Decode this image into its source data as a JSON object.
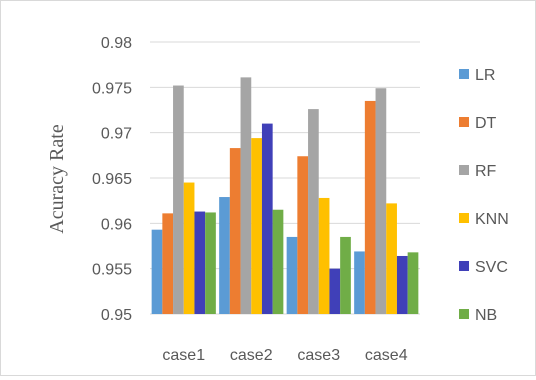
{
  "chart_data": {
    "type": "bar",
    "title": "",
    "xlabel": "",
    "ylabel": "Acuracy Rate",
    "ylim": [
      0.95,
      0.98
    ],
    "yticks": [
      "0.95",
      "0.955",
      "0.96",
      "0.965",
      "0.97",
      "0.975",
      "0.98"
    ],
    "grid": true,
    "legend_position": "right",
    "categories": [
      "case1",
      "case2",
      "case3",
      "case4"
    ],
    "series": [
      {
        "name": "LR",
        "color": "#5b9bd5",
        "values": [
          0.9593,
          0.9629,
          0.9585,
          0.9569
        ]
      },
      {
        "name": "DT",
        "color": "#ed7d31",
        "values": [
          0.9611,
          0.9683,
          0.9674,
          0.9735
        ]
      },
      {
        "name": "RF",
        "color": "#a5a5a5",
        "values": [
          0.9752,
          0.9761,
          0.9726,
          0.9749
        ]
      },
      {
        "name": "KNN",
        "color": "#ffc000",
        "values": [
          0.9645,
          0.9694,
          0.9628,
          0.9622
        ]
      },
      {
        "name": "SVC",
        "color": "#4040b8",
        "values": [
          0.9613,
          0.971,
          0.955,
          0.9564
        ]
      },
      {
        "name": "NB",
        "color": "#70ad47",
        "values": [
          0.9612,
          0.9615,
          0.9585,
          0.9568
        ]
      }
    ]
  }
}
